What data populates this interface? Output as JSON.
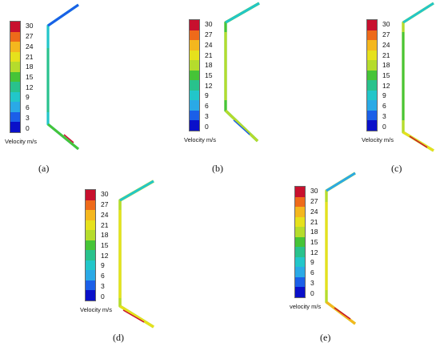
{
  "legend": {
    "ticks": [
      "30",
      "27",
      "24",
      "21",
      "18",
      "15",
      "12",
      "9",
      "6",
      "3",
      "0"
    ],
    "colors": [
      "#c8102e",
      "#ee6a1a",
      "#f4b71e",
      "#e6e11c",
      "#b5dc2c",
      "#46c437",
      "#29c28c",
      "#22c6c9",
      "#2aa9e6",
      "#1b5fe8",
      "#0a10c9"
    ],
    "label": "Velocity m/s"
  },
  "panels": [
    {
      "id": "a",
      "caption": "(a)",
      "legend_label": "Velocity m/s"
    },
    {
      "id": "b",
      "caption": "(b)",
      "legend_label": "Velocity m/s"
    },
    {
      "id": "c",
      "caption": "(c)",
      "legend_label": "Velocity m/s"
    },
    {
      "id": "d",
      "caption": "(d)",
      "legend_label": "Velocity m/s"
    },
    {
      "id": "e",
      "caption": "(e)",
      "legend_label": "velocity m/s"
    }
  ]
}
